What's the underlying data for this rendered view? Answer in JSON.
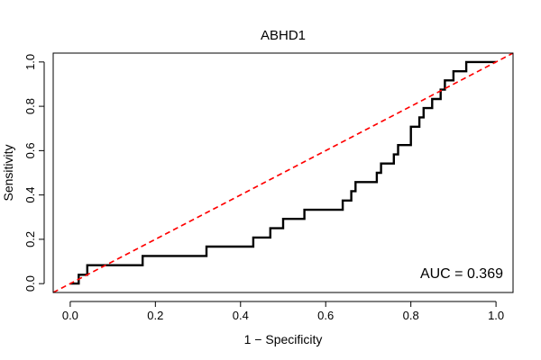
{
  "chart_data": {
    "type": "line",
    "title": "ABHD1",
    "xlabel": "1 − Specificity",
    "ylabel": "Sensitivity",
    "xlim": [
      -0.04,
      1.04
    ],
    "ylim": [
      -0.04,
      1.04
    ],
    "xticks": [
      0.0,
      0.2,
      0.4,
      0.6,
      0.8,
      1.0
    ],
    "xtick_labels": [
      "0.0",
      "0.2",
      "0.4",
      "0.6",
      "0.8",
      "1.0"
    ],
    "yticks": [
      0.0,
      0.2,
      0.4,
      0.6,
      0.8,
      1.0
    ],
    "ytick_labels": [
      "0.0",
      "0.2",
      "0.4",
      "0.6",
      "0.8",
      "1.0"
    ],
    "annotation": "AUC = 0.369",
    "series": [
      {
        "name": "ROC curve",
        "color": "#000000",
        "style": "solid",
        "x": [
          0.0,
          0.02,
          0.02,
          0.04,
          0.04,
          0.17,
          0.17,
          0.32,
          0.32,
          0.43,
          0.43,
          0.47,
          0.47,
          0.5,
          0.5,
          0.55,
          0.55,
          0.64,
          0.64,
          0.66,
          0.66,
          0.67,
          0.67,
          0.72,
          0.72,
          0.73,
          0.73,
          0.76,
          0.76,
          0.77,
          0.77,
          0.8,
          0.8,
          0.82,
          0.82,
          0.83,
          0.83,
          0.85,
          0.85,
          0.87,
          0.87,
          0.88,
          0.88,
          0.9,
          0.9,
          0.93,
          0.93,
          1.0
        ],
        "y": [
          0.0,
          0.0,
          0.04,
          0.04,
          0.083,
          0.083,
          0.125,
          0.125,
          0.167,
          0.167,
          0.208,
          0.208,
          0.25,
          0.25,
          0.292,
          0.292,
          0.333,
          0.333,
          0.375,
          0.375,
          0.417,
          0.417,
          0.458,
          0.458,
          0.5,
          0.5,
          0.542,
          0.542,
          0.583,
          0.583,
          0.625,
          0.625,
          0.708,
          0.708,
          0.75,
          0.75,
          0.792,
          0.792,
          0.833,
          0.833,
          0.875,
          0.875,
          0.917,
          0.917,
          0.958,
          0.958,
          1.0,
          1.0
        ]
      },
      {
        "name": "Reference diagonal",
        "color": "#ff0000",
        "style": "dashed",
        "x": [
          -0.04,
          1.04
        ],
        "y": [
          -0.04,
          1.04
        ]
      }
    ]
  }
}
